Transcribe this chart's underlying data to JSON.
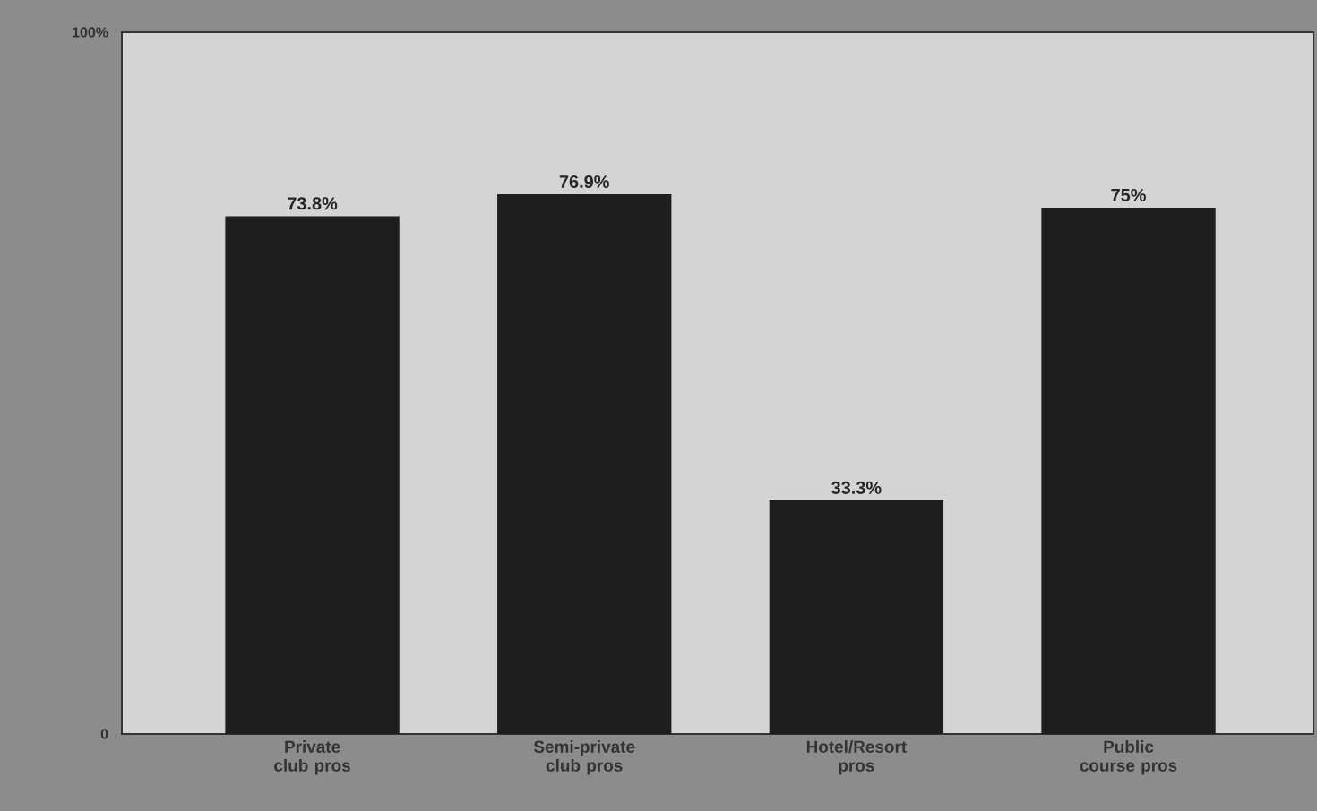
{
  "chart_data": {
    "type": "bar",
    "categories": [
      "Private club pros",
      "Semi-private club pros",
      "Hotel/Resort pros",
      "Public course pros"
    ],
    "values": [
      73.8,
      76.9,
      33.3,
      75
    ],
    "value_labels": [
      "73.8%",
      "76.9%",
      "33.3%",
      "75%"
    ],
    "color": "#1e1e1e",
    "ylim": [
      0,
      100
    ],
    "yticks": [
      0,
      {
        "value": 100,
        "label": "100%"
      }
    ]
  }
}
